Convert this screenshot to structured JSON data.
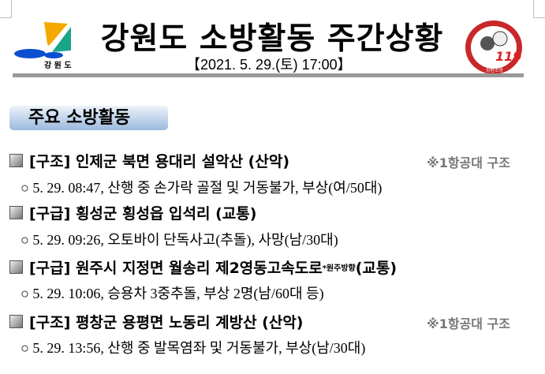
{
  "header": {
    "title": "강원도 소방활동 주간상황",
    "date": "【2021. 5. 29.(토) 17:00】",
    "logo_left_text": "강원도",
    "logo_right_text": "Gangwon Fire Services 119 강원소방"
  },
  "section_title": "주요 소방활동",
  "items": [
    {
      "heading": "[구조] 인제군 북면 용대리 설악산 (산악)",
      "sup": "",
      "tail": "",
      "note": "※1항공대 구조",
      "detail": "○ 5. 29. 08:47, 산행 중 손가락 골절 및 거동불가, 부상(여/50대)"
    },
    {
      "heading": "[구급] 횡성군 횡성읍 입석리 (교통)",
      "sup": "",
      "tail": "",
      "note": "",
      "detail": "○ 5. 29. 09:26, 오토바이 단독사고(추돌), 사망(남/30대)"
    },
    {
      "heading": "[구급] 원주시 지정면 월송리 제2영동고속도로 ",
      "sup": "*원주방향",
      "tail": " (교통)",
      "note": "",
      "detail": "○ 5. 29. 10:06, 승용차 3중추돌, 부상 2명(남/60대 등)"
    },
    {
      "heading": "[구조] 평창군 용평면 노동리 계방산 (산악)",
      "sup": "",
      "tail": "",
      "note": "※1항공대 구조",
      "detail": "○ 5. 29. 13:56, 산행 중 발목염좌 및 거동불가, 부상(남/30대)"
    }
  ]
}
